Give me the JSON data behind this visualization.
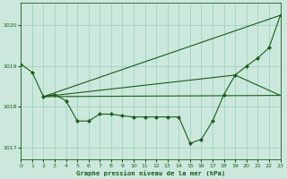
{
  "background_color": "#cce8dd",
  "grid_color": "#99ccbb",
  "line_color": "#1a5c1a",
  "marker_color": "#1a5c1a",
  "title": "Graphe pression niveau de la mer (hPa)",
  "xlim": [
    0,
    23
  ],
  "ylim": [
    1016.7,
    1020.55
  ],
  "yticks": [
    1017,
    1018,
    1019,
    1020
  ],
  "xticks": [
    0,
    1,
    2,
    3,
    4,
    5,
    6,
    7,
    8,
    9,
    10,
    11,
    12,
    13,
    14,
    15,
    16,
    17,
    18,
    19,
    20,
    21,
    22,
    23
  ],
  "main_line": {
    "x": [
      0,
      1,
      2,
      3,
      4,
      5,
      6,
      7,
      8,
      9,
      10,
      11,
      12,
      13,
      14,
      15,
      16,
      17,
      18,
      19,
      20,
      21,
      22,
      23
    ],
    "y": [
      1019.05,
      1018.85,
      1018.25,
      1018.3,
      1018.15,
      1017.65,
      1017.65,
      1017.82,
      1017.82,
      1017.78,
      1017.75,
      1017.75,
      1017.75,
      1017.75,
      1017.75,
      1017.1,
      1017.2,
      1017.65,
      1018.3,
      1018.78,
      1019.0,
      1019.2,
      1019.45,
      1020.25
    ]
  },
  "straight_up": {
    "x": [
      2,
      23
    ],
    "y": [
      1018.25,
      1020.25
    ]
  },
  "flat_line": {
    "x": [
      2,
      23
    ],
    "y": [
      1018.25,
      1018.28
    ]
  },
  "slight_rise": {
    "x": [
      2,
      19,
      23
    ],
    "y": [
      1018.25,
      1018.78,
      1018.28
    ]
  }
}
